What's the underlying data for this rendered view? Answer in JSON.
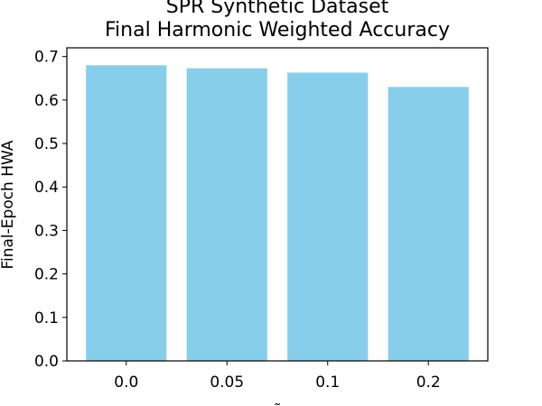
{
  "chart_data": {
    "type": "bar",
    "title_line1": "SPR Synthetic Dataset",
    "title_line2": "Final Harmonic Weighted Accuracy",
    "xlabel": "ñ",
    "ylabel": "Final-Epoch HWA",
    "categories": [
      "0.0",
      "0.05",
      "0.1",
      "0.2"
    ],
    "values": [
      0.68,
      0.673,
      0.663,
      0.63
    ],
    "ylim": [
      0,
      0.72
    ],
    "yticks": [
      "0.0",
      "0.1",
      "0.2",
      "0.3",
      "0.4",
      "0.5",
      "0.6",
      "0.7"
    ],
    "bar_color": "#87ceeb",
    "grid": false,
    "legend": "none"
  }
}
